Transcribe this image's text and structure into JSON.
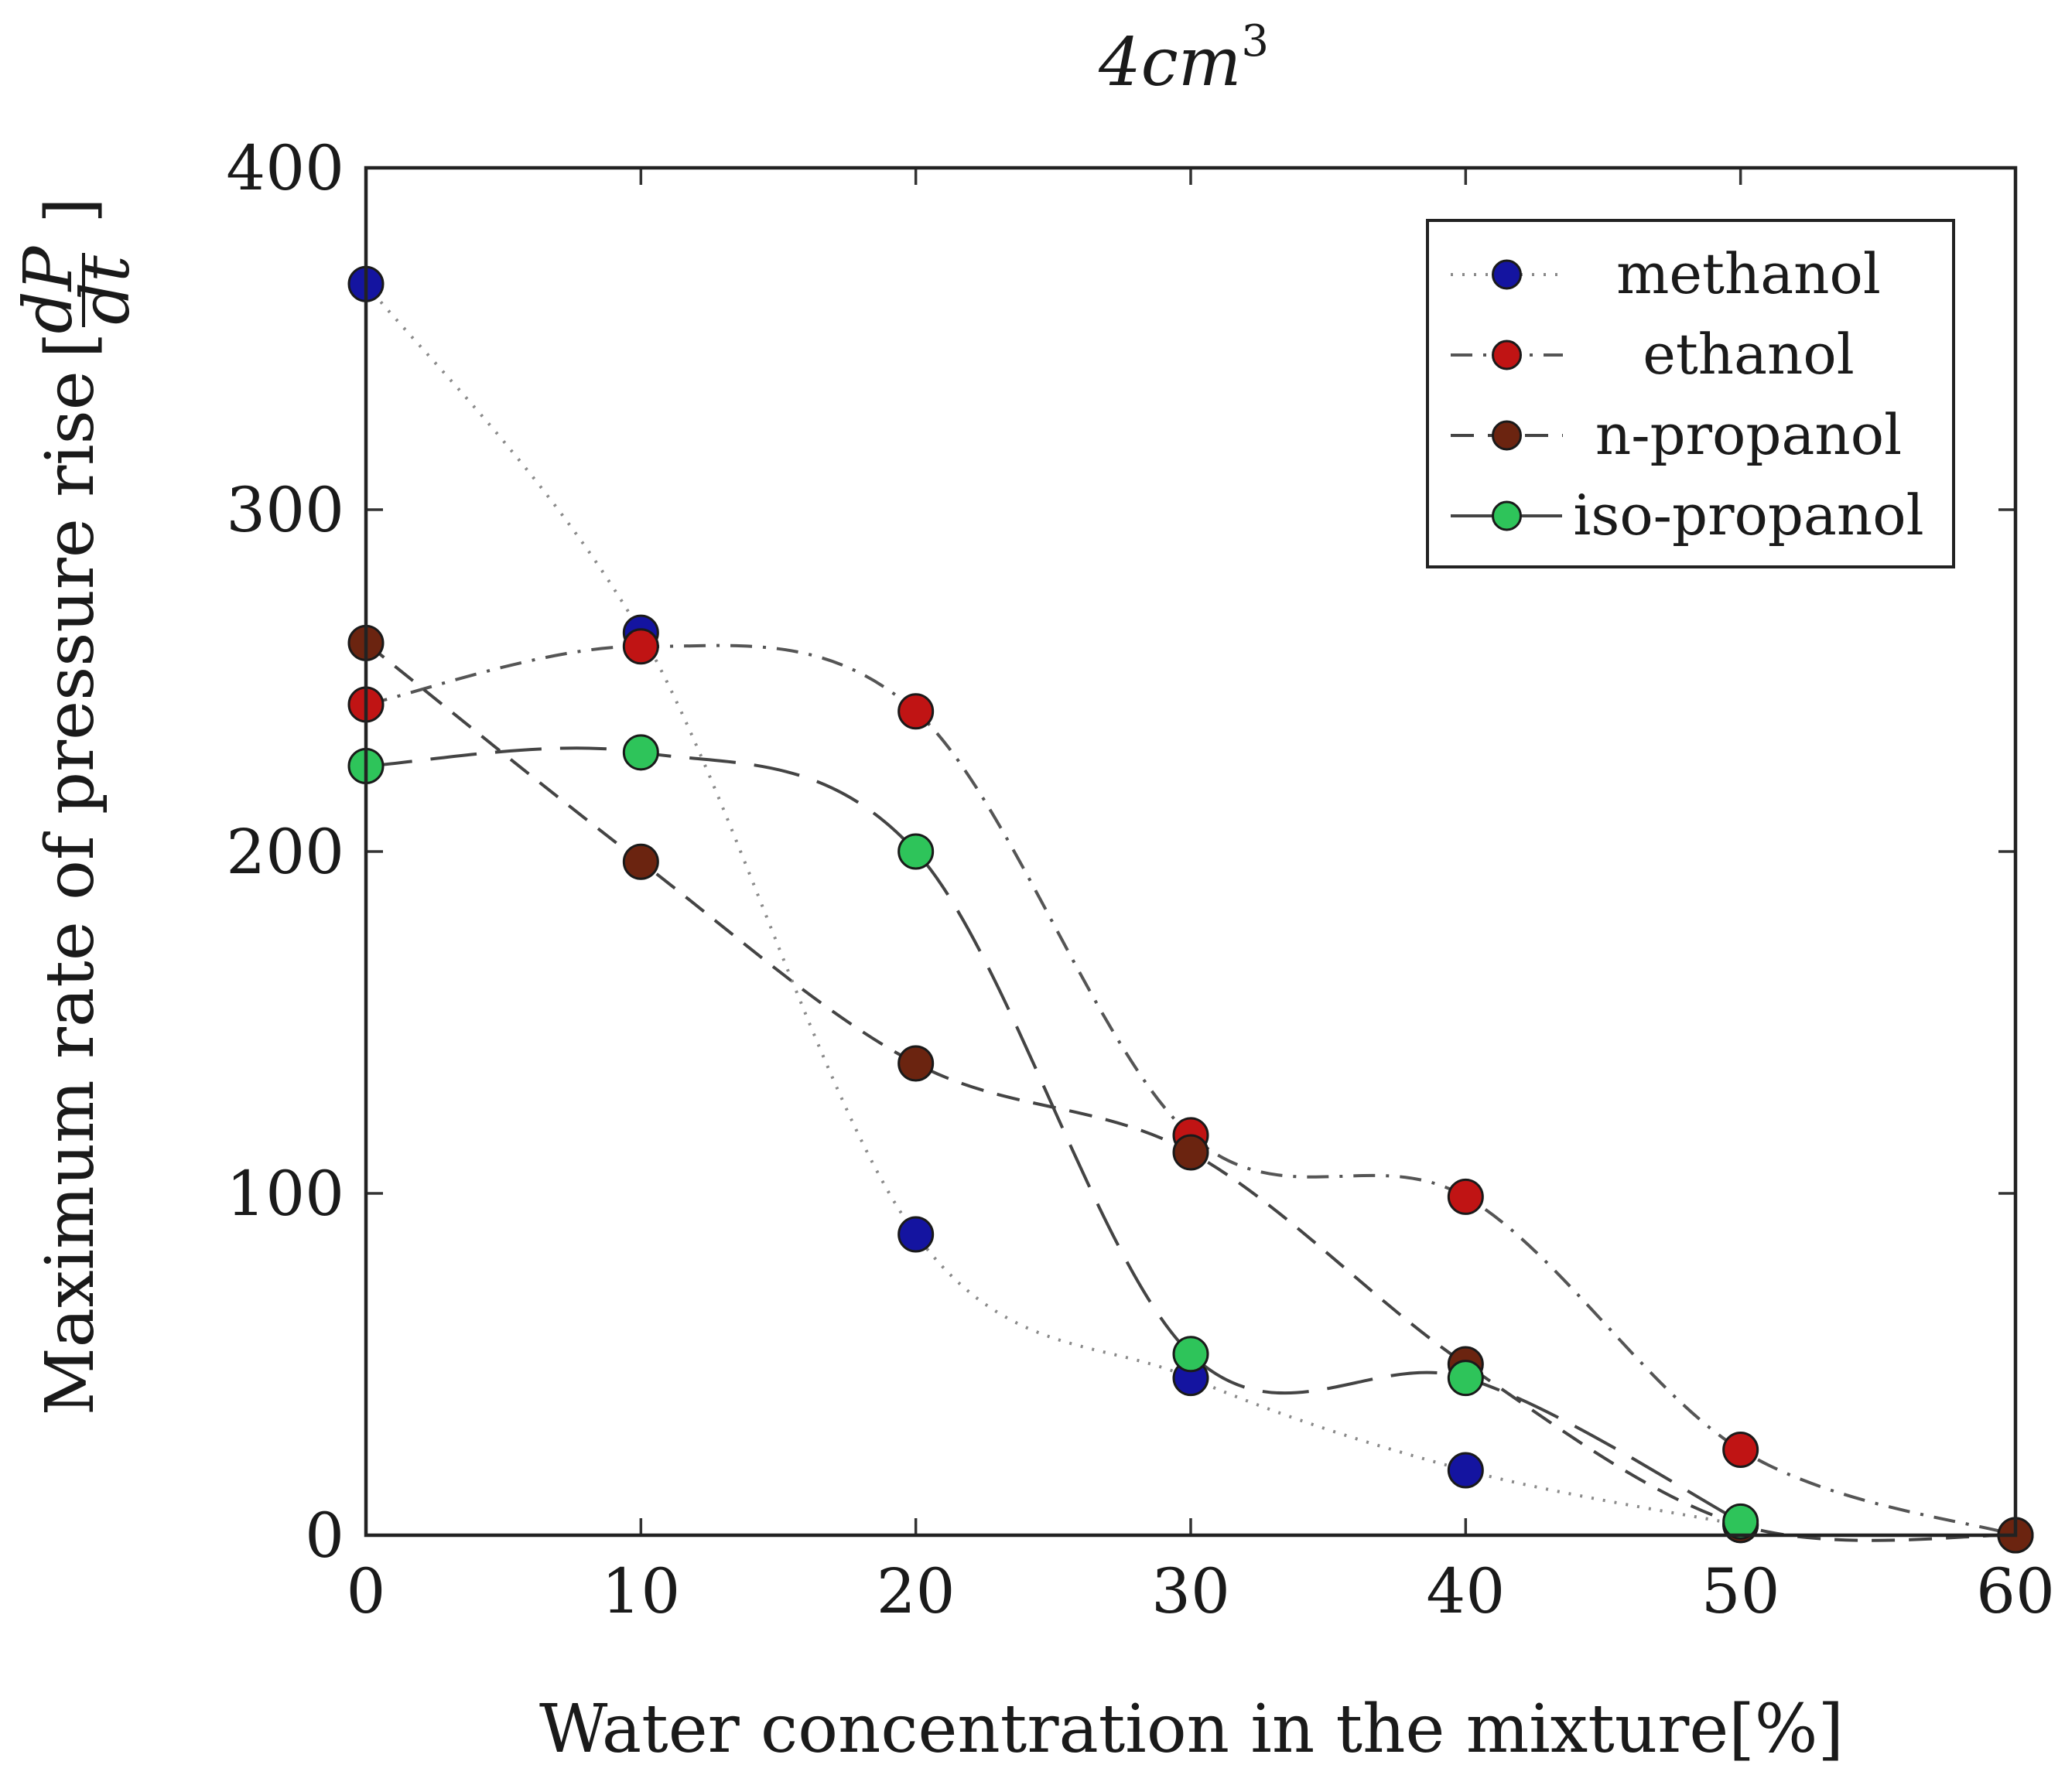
{
  "chart_data": {
    "type": "line",
    "title": "4cm",
    "title_sup": "3",
    "xlabel": "Water concentration in the mixture[%]",
    "ylabel": "Maximum rate of pressure rise",
    "ylabel_frac_num": "dP",
    "ylabel_frac_den": "dt",
    "xlim": [
      0,
      60
    ],
    "ylim": [
      0,
      400
    ],
    "xticks": [
      0,
      10,
      20,
      30,
      40,
      50,
      60
    ],
    "yticks": [
      0,
      100,
      200,
      300,
      400
    ],
    "legend_position": "top-right",
    "series": [
      {
        "name": "methanol",
        "color": "#1414a0",
        "line_style": "dotted",
        "line_color": "#8a8a8a",
        "x": [
          0,
          10,
          20,
          30,
          40,
          50
        ],
        "y": [
          366,
          264,
          88,
          46,
          19,
          3
        ]
      },
      {
        "name": "ethanol",
        "color": "#c01414",
        "line_style": "dashdot",
        "line_color": "#555555",
        "x": [
          0,
          10,
          20,
          30,
          40,
          50,
          60
        ],
        "y": [
          243,
          260,
          241,
          117,
          99,
          25,
          0
        ]
      },
      {
        "name": "n-propanol",
        "color": "#6b2410",
        "line_style": "dashed",
        "line_color": "#444444",
        "x": [
          0,
          10,
          20,
          30,
          40,
          50,
          60
        ],
        "y": [
          261,
          197,
          138,
          112,
          50,
          3,
          0
        ]
      },
      {
        "name": "iso-propanol",
        "color": "#2ec45a",
        "line_style": "longdash",
        "line_color": "#444444",
        "x": [
          0,
          10,
          20,
          30,
          40,
          50
        ],
        "y": [
          225,
          229,
          200,
          53,
          46,
          4
        ]
      }
    ]
  }
}
